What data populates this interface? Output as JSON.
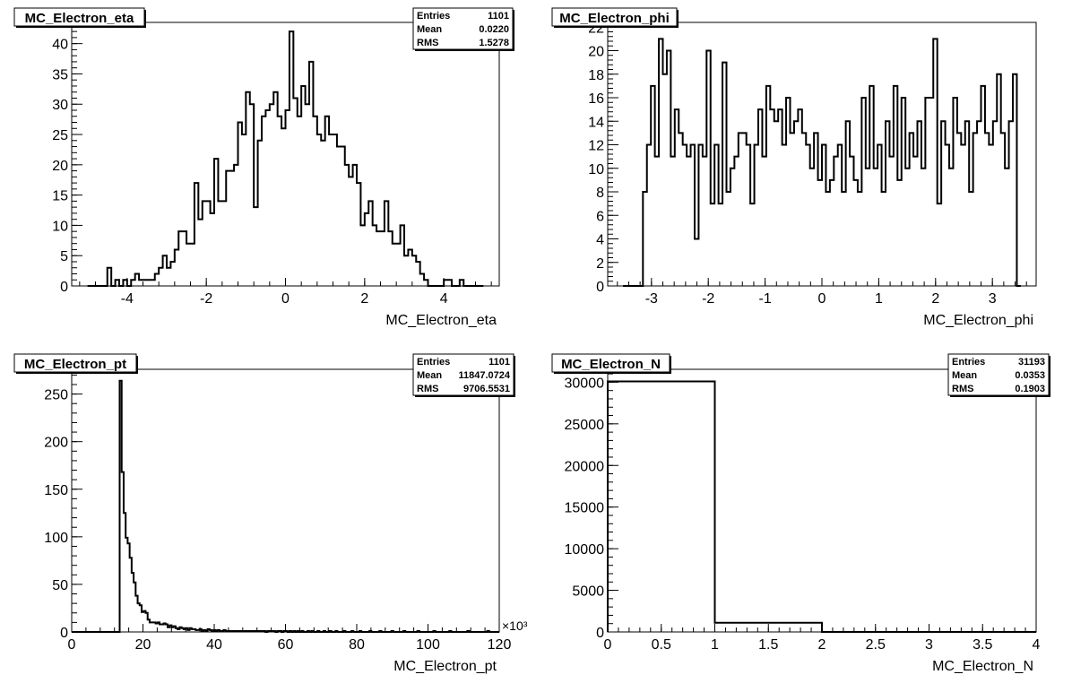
{
  "chart_data": [
    {
      "type": "histogram",
      "title": "MC_Electron_eta",
      "xlabel": "MC_Electron_eta",
      "ylabel": "",
      "xlim": [
        -5.4,
        5.4
      ],
      "ylim": [
        0,
        43.5
      ],
      "x_ticks": [
        "-4",
        "-2",
        "0",
        "2",
        "4"
      ],
      "x_tick_values": [
        -4,
        -2,
        0,
        2,
        4
      ],
      "y_ticks": [
        "0",
        "5",
        "10",
        "15",
        "20",
        "25",
        "30",
        "35",
        "40"
      ],
      "y_tick_values": [
        0,
        5,
        10,
        15,
        20,
        25,
        30,
        35,
        40
      ],
      "x_multiplier": "",
      "bin_edges_range": [
        -5.0,
        5.0
      ],
      "values": [
        0,
        0,
        0,
        0,
        0,
        3,
        0,
        1,
        0,
        1,
        0,
        1,
        2,
        1,
        1,
        1,
        1,
        2,
        3,
        5,
        3,
        4,
        6,
        9,
        9,
        7,
        7,
        17,
        11,
        14,
        14,
        12,
        21,
        14,
        14,
        19,
        19,
        20,
        27,
        25,
        32,
        30,
        13,
        24,
        28,
        29,
        30,
        32,
        28,
        26,
        29,
        42,
        31,
        28,
        33,
        30,
        37,
        28,
        25,
        24,
        28,
        25,
        25,
        23,
        23,
        20,
        18,
        20,
        17,
        10,
        12,
        14,
        10,
        9,
        9,
        14,
        9,
        7,
        7,
        10,
        5,
        6,
        5,
        4,
        2,
        1,
        0,
        0,
        0,
        0,
        1,
        1,
        0,
        0,
        1,
        0,
        0,
        0,
        0,
        0
      ],
      "stats": {
        "entries": "1101",
        "mean": "0.0220",
        "rms": "1.5278"
      }
    },
    {
      "type": "histogram",
      "title": "MC_Electron_phi",
      "xlabel": "MC_Electron_phi",
      "ylabel": "",
      "xlim": [
        -3.77,
        3.77
      ],
      "ylim": [
        0,
        22.4
      ],
      "x_ticks": [
        "-3",
        "-2",
        "-1",
        "0",
        "1",
        "2",
        "3"
      ],
      "x_tick_values": [
        -3,
        -2,
        -1,
        0,
        1,
        2,
        3
      ],
      "y_ticks": [
        "0",
        "2",
        "4",
        "6",
        "8",
        "10",
        "12",
        "14",
        "16",
        "18",
        "20",
        "22"
      ],
      "y_tick_values": [
        0,
        2,
        4,
        6,
        8,
        10,
        12,
        14,
        16,
        18,
        20,
        22
      ],
      "x_multiplier": "",
      "bin_edges_range": [
        -3.5,
        3.5
      ],
      "values": [
        0,
        0,
        0,
        0,
        0,
        8,
        12,
        17,
        11,
        21,
        18,
        20,
        11,
        15,
        13,
        12,
        11,
        12,
        4,
        12,
        11,
        20,
        7,
        12,
        7,
        19,
        8,
        10,
        11,
        13,
        13,
        12,
        7,
        12,
        15,
        11,
        17,
        15,
        14,
        15,
        12,
        16,
        13,
        14,
        15,
        13,
        12,
        10,
        13,
        9,
        12,
        8,
        9,
        11,
        12,
        8,
        14,
        11,
        9,
        8,
        16,
        10,
        17,
        10,
        12,
        8,
        14,
        11,
        17,
        9,
        16,
        10,
        13,
        11,
        14,
        10,
        16,
        16,
        21,
        7,
        14,
        12,
        10,
        16,
        13,
        12,
        14,
        8,
        13,
        14,
        17,
        13,
        12,
        14,
        18,
        13,
        10,
        14,
        18,
        0
      ]
    },
    {
      "type": "histogram",
      "title": "MC_Electron_pt",
      "xlabel": "MC_Electron_pt",
      "ylabel": "",
      "xlim": [
        0,
        120000
      ],
      "ylim": [
        0,
        276
      ],
      "x_ticks": [
        "0",
        "20",
        "40",
        "60",
        "80",
        "100",
        "120"
      ],
      "x_tick_values": [
        0,
        20000,
        40000,
        60000,
        80000,
        100000,
        120000
      ],
      "y_ticks": [
        "0",
        "50",
        "100",
        "150",
        "200",
        "250"
      ],
      "y_tick_values": [
        0,
        50,
        100,
        150,
        200,
        250
      ],
      "x_multiplier": "×10³",
      "bin_edges_range": [
        0,
        120000
      ],
      "values": [
        0,
        0,
        0,
        0,
        0,
        0,
        0,
        0,
        0,
        0,
        0,
        0,
        0,
        0,
        0,
        0,
        0,
        0,
        0,
        0,
        0,
        0,
        0,
        0,
        264,
        168,
        125,
        99,
        93,
        78,
        62,
        52,
        38,
        30,
        28,
        21,
        22,
        20,
        13,
        10,
        10,
        10,
        9,
        10,
        8,
        8,
        9,
        8,
        5,
        7,
        5,
        6,
        4,
        3,
        5,
        4,
        3,
        4,
        2,
        4,
        3,
        3,
        2,
        2,
        3,
        1,
        2,
        1,
        3,
        2,
        1,
        2,
        1,
        2,
        1,
        1,
        2,
        1,
        1,
        1,
        1,
        1,
        1,
        1,
        1,
        1,
        1,
        1,
        1,
        1,
        1,
        1,
        1,
        1,
        1,
        1,
        1,
        0,
        1,
        1,
        1,
        1,
        0,
        1,
        1,
        0,
        1,
        1,
        0,
        1,
        0,
        1,
        0,
        1,
        0,
        1,
        0,
        0,
        1,
        0,
        1,
        0,
        0,
        1,
        0,
        0,
        1,
        0,
        0,
        1,
        0,
        0,
        1,
        0,
        0,
        0,
        1,
        0,
        0,
        0,
        1,
        0,
        0,
        0,
        1,
        0,
        0,
        0,
        0,
        1,
        0,
        0,
        0,
        0,
        1,
        0,
        0,
        0,
        0,
        0,
        1,
        0,
        0,
        0,
        0,
        0,
        1,
        0,
        0,
        0,
        0,
        0,
        0,
        1,
        0,
        0,
        0,
        0,
        0,
        0,
        0,
        1,
        0,
        0,
        0,
        0,
        0,
        0,
        0,
        1,
        0,
        0,
        0,
        0,
        0,
        0,
        0,
        0,
        1,
        0,
        0,
        0,
        0,
        0,
        0,
        0,
        0,
        0,
        1,
        0,
        0,
        0,
        0,
        0
      ],
      "stats": {
        "entries": "1101",
        "mean": "11847.0724",
        "rms": "9706.5531"
      }
    },
    {
      "type": "histogram",
      "title": "MC_Electron_N",
      "xlabel": "MC_Electron_N",
      "ylabel": "",
      "xlim": [
        0,
        4
      ],
      "ylim": [
        0,
        31550
      ],
      "x_ticks": [
        "0",
        "0.5",
        "1",
        "1.5",
        "2",
        "2.5",
        "3",
        "3.5",
        "4"
      ],
      "x_tick_values": [
        0,
        0.5,
        1,
        1.5,
        2,
        2.5,
        3,
        3.5,
        4
      ],
      "y_ticks": [
        "0",
        "5000",
        "10000",
        "15000",
        "20000",
        "25000",
        "30000"
      ],
      "y_tick_values": [
        0,
        5000,
        10000,
        15000,
        20000,
        25000,
        30000
      ],
      "x_multiplier": "",
      "bin_edges_range": [
        0,
        4
      ],
      "values": [
        30092,
        1101,
        0,
        0
      ],
      "stats": {
        "entries": "31193",
        "mean": "0.0353",
        "rms": "0.1903"
      }
    }
  ],
  "stats_labels": {
    "entries": "Entries",
    "mean": "Mean",
    "rms": "RMS"
  }
}
